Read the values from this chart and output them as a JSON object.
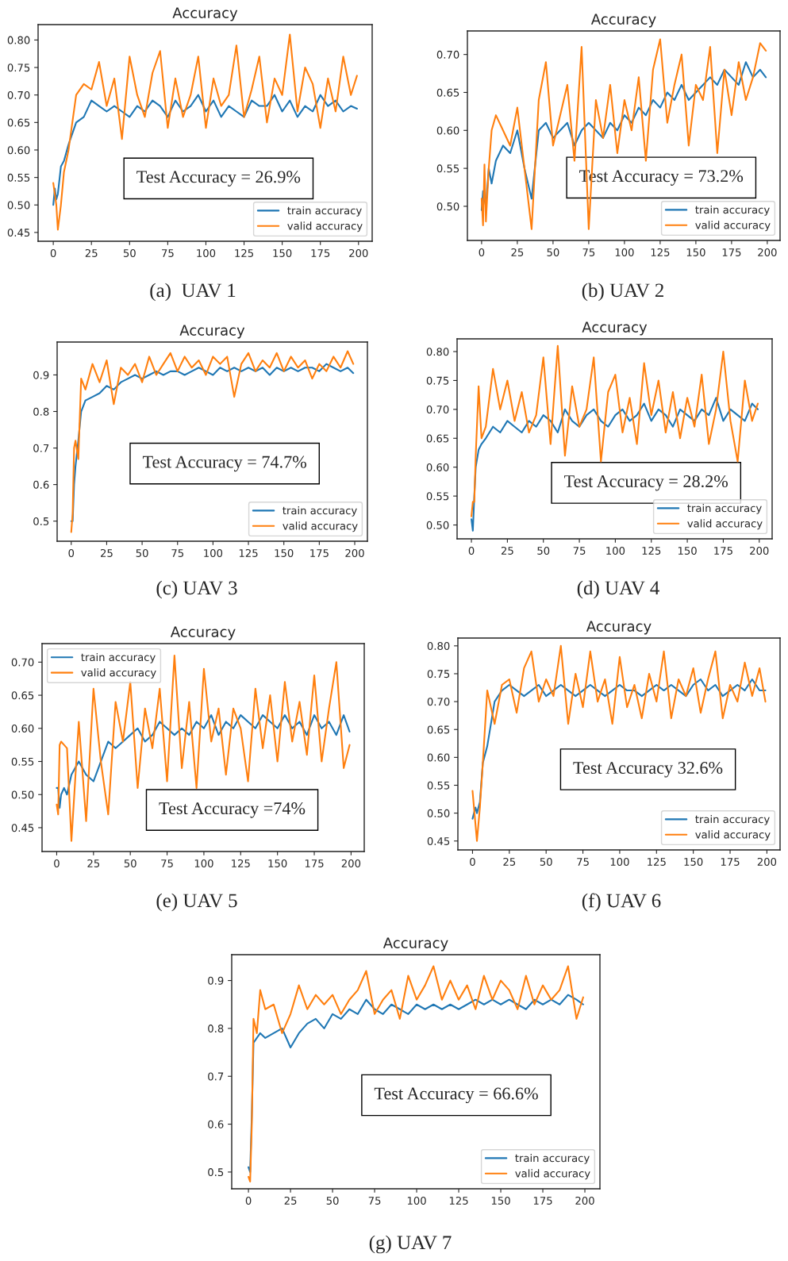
{
  "chart_data": [
    {
      "type": "line",
      "title": "Accuracy",
      "x": [
        0,
        1,
        2,
        3,
        5,
        7,
        10,
        15,
        20,
        25,
        30,
        35,
        40,
        45,
        50,
        55,
        60,
        65,
        70,
        75,
        80,
        85,
        90,
        95,
        100,
        105,
        110,
        115,
        120,
        125,
        130,
        135,
        140,
        145,
        150,
        155,
        160,
        165,
        170,
        175,
        180,
        185,
        190,
        195,
        199
      ],
      "series": [
        {
          "name": "train accuracy",
          "color": "#1f77b4",
          "values": [
            0.5,
            0.53,
            0.51,
            0.52,
            0.57,
            0.58,
            0.61,
            0.65,
            0.66,
            0.69,
            0.68,
            0.67,
            0.68,
            0.67,
            0.66,
            0.68,
            0.67,
            0.69,
            0.68,
            0.66,
            0.69,
            0.67,
            0.68,
            0.7,
            0.67,
            0.69,
            0.66,
            0.68,
            0.67,
            0.66,
            0.69,
            0.68,
            0.68,
            0.7,
            0.67,
            0.69,
            0.66,
            0.68,
            0.67,
            0.7,
            0.68,
            0.69,
            0.67,
            0.68,
            0.675
          ]
        },
        {
          "name": "valid accuracy",
          "color": "#ff7f0e",
          "values": [
            0.54,
            0.52,
            0.5,
            0.455,
            0.5,
            0.56,
            0.6,
            0.7,
            0.72,
            0.71,
            0.76,
            0.68,
            0.73,
            0.62,
            0.77,
            0.7,
            0.66,
            0.74,
            0.78,
            0.64,
            0.73,
            0.66,
            0.7,
            0.77,
            0.64,
            0.73,
            0.68,
            0.7,
            0.79,
            0.66,
            0.71,
            0.77,
            0.65,
            0.73,
            0.7,
            0.81,
            0.67,
            0.75,
            0.72,
            0.64,
            0.73,
            0.67,
            0.77,
            0.7,
            0.735
          ]
        }
      ],
      "xlim": [
        -9.95,
        208.95
      ],
      "xticks": [
        0,
        25,
        50,
        75,
        100,
        125,
        150,
        175,
        200
      ],
      "ylim": [
        0.434,
        0.828
      ],
      "yticks": [
        0.45,
        {
          "value": 0.5,
          "label": "0.50"
        },
        0.55,
        {
          "value": 0.6,
          "label": "0.60"
        },
        0.65,
        {
          "value": 0.7,
          "label": "0.70"
        },
        0.75,
        {
          "value": 0.8,
          "label": "0.80"
        }
      ],
      "legend": "bottom right",
      "annotations": [
        "Test Accuracy = 26.9%",
        "(a)  UAV 1"
      ]
    },
    {
      "type": "line",
      "title": "Accuracy",
      "x": [
        0,
        1,
        2,
        3,
        5,
        7,
        10,
        15,
        20,
        25,
        30,
        35,
        40,
        45,
        50,
        55,
        60,
        65,
        70,
        75,
        80,
        85,
        90,
        95,
        100,
        105,
        110,
        115,
        120,
        125,
        130,
        135,
        140,
        145,
        150,
        155,
        160,
        165,
        170,
        175,
        180,
        185,
        190,
        195,
        199
      ],
      "series": [
        {
          "name": "train accuracy",
          "color": "#1f77b4",
          "values": [
            0.495,
            0.52,
            0.51,
            0.5,
            0.55,
            0.53,
            0.56,
            0.58,
            0.57,
            0.6,
            0.55,
            0.51,
            0.6,
            0.61,
            0.59,
            0.6,
            0.61,
            0.58,
            0.6,
            0.61,
            0.6,
            0.59,
            0.61,
            0.6,
            0.62,
            0.61,
            0.63,
            0.62,
            0.64,
            0.63,
            0.65,
            0.64,
            0.66,
            0.64,
            0.65,
            0.66,
            0.67,
            0.66,
            0.68,
            0.67,
            0.66,
            0.69,
            0.67,
            0.68,
            0.67
          ]
        },
        {
          "name": "valid accuracy",
          "color": "#ff7f0e",
          "values": [
            0.51,
            0.475,
            0.555,
            0.48,
            0.55,
            0.6,
            0.62,
            0.6,
            0.58,
            0.63,
            0.55,
            0.47,
            0.64,
            0.69,
            0.58,
            0.62,
            0.66,
            0.56,
            0.71,
            0.47,
            0.64,
            0.59,
            0.66,
            0.57,
            0.64,
            0.6,
            0.67,
            0.56,
            0.68,
            0.72,
            0.61,
            0.66,
            0.7,
            0.58,
            0.66,
            0.64,
            0.71,
            0.57,
            0.68,
            0.62,
            0.69,
            0.64,
            0.67,
            0.715,
            0.705
          ]
        }
      ],
      "xlim": [
        -9.95,
        208.95
      ],
      "xticks": [
        0,
        25,
        50,
        75,
        100,
        125,
        150,
        175,
        200
      ],
      "ylim": [
        0.455,
        0.731
      ],
      "yticks": [
        {
          "value": 0.5,
          "label": "0.50"
        },
        0.55,
        {
          "value": 0.6,
          "label": "0.60"
        },
        0.65,
        {
          "value": 0.7,
          "label": "0.70"
        }
      ],
      "legend": "bottom right",
      "annotations": [
        "Test Accuracy = 73.2%",
        "(b) UAV 2"
      ]
    },
    {
      "type": "line",
      "title": "Accuracy",
      "x": [
        0,
        1,
        2,
        3,
        5,
        7,
        10,
        15,
        20,
        25,
        30,
        35,
        40,
        45,
        50,
        55,
        60,
        65,
        70,
        75,
        80,
        85,
        90,
        95,
        100,
        105,
        110,
        115,
        120,
        125,
        130,
        135,
        140,
        145,
        150,
        155,
        160,
        165,
        170,
        175,
        180,
        185,
        190,
        195,
        199
      ],
      "series": [
        {
          "name": "train accuracy",
          "color": "#1f77b4",
          "values": [
            0.5,
            0.5,
            0.6,
            0.65,
            0.72,
            0.8,
            0.83,
            0.84,
            0.85,
            0.87,
            0.86,
            0.88,
            0.89,
            0.9,
            0.89,
            0.9,
            0.91,
            0.9,
            0.91,
            0.91,
            0.9,
            0.91,
            0.92,
            0.91,
            0.9,
            0.92,
            0.91,
            0.92,
            0.91,
            0.92,
            0.91,
            0.92,
            0.9,
            0.92,
            0.91,
            0.92,
            0.91,
            0.92,
            0.92,
            0.91,
            0.93,
            0.92,
            0.91,
            0.92,
            0.905
          ]
        },
        {
          "name": "valid accuracy",
          "color": "#ff7f0e",
          "values": [
            0.47,
            0.52,
            0.7,
            0.72,
            0.67,
            0.89,
            0.86,
            0.93,
            0.88,
            0.94,
            0.82,
            0.92,
            0.9,
            0.93,
            0.88,
            0.95,
            0.9,
            0.93,
            0.96,
            0.91,
            0.95,
            0.92,
            0.94,
            0.9,
            0.95,
            0.93,
            0.95,
            0.84,
            0.93,
            0.96,
            0.91,
            0.94,
            0.92,
            0.96,
            0.91,
            0.95,
            0.92,
            0.94,
            0.89,
            0.93,
            0.91,
            0.95,
            0.92,
            0.965,
            0.93
          ]
        }
      ],
      "xlim": [
        -9.95,
        208.95
      ],
      "xticks": [
        0,
        25,
        50,
        75,
        100,
        125,
        150,
        175,
        200
      ],
      "ylim": [
        0.445,
        0.99
      ],
      "yticks": [
        0.5,
        0.6,
        0.7,
        0.8,
        0.9
      ],
      "legend": "bottom right",
      "annotations": [
        "Test Accuracy = 74.7%",
        "(c) UAV 3"
      ]
    },
    {
      "type": "line",
      "title": "Accuracy",
      "x": [
        0,
        1,
        2,
        3,
        5,
        7,
        10,
        15,
        20,
        25,
        30,
        35,
        40,
        45,
        50,
        55,
        60,
        65,
        70,
        75,
        80,
        85,
        90,
        95,
        100,
        105,
        110,
        115,
        120,
        125,
        130,
        135,
        140,
        145,
        150,
        155,
        160,
        165,
        170,
        175,
        180,
        185,
        190,
        195,
        199
      ],
      "series": [
        {
          "name": "train accuracy",
          "color": "#1f77b4",
          "values": [
            0.51,
            0.49,
            0.55,
            0.6,
            0.63,
            0.64,
            0.65,
            0.67,
            0.66,
            0.68,
            0.67,
            0.66,
            0.68,
            0.67,
            0.69,
            0.68,
            0.66,
            0.7,
            0.68,
            0.67,
            0.69,
            0.7,
            0.68,
            0.67,
            0.69,
            0.7,
            0.68,
            0.69,
            0.71,
            0.68,
            0.7,
            0.69,
            0.67,
            0.7,
            0.69,
            0.68,
            0.7,
            0.69,
            0.72,
            0.68,
            0.7,
            0.69,
            0.68,
            0.71,
            0.7
          ]
        },
        {
          "name": "valid accuracy",
          "color": "#ff7f0e",
          "values": [
            0.515,
            0.54,
            0.54,
            0.62,
            0.74,
            0.65,
            0.67,
            0.77,
            0.7,
            0.75,
            0.68,
            0.73,
            0.66,
            0.69,
            0.79,
            0.64,
            0.81,
            0.62,
            0.74,
            0.67,
            0.7,
            0.79,
            0.61,
            0.73,
            0.76,
            0.66,
            0.72,
            0.64,
            0.78,
            0.69,
            0.75,
            0.66,
            0.73,
            0.65,
            0.72,
            0.67,
            0.76,
            0.64,
            0.7,
            0.8,
            0.68,
            0.61,
            0.75,
            0.68,
            0.71
          ]
        }
      ],
      "xlim": [
        -9.95,
        208.95
      ],
      "xticks": [
        0,
        25,
        50,
        75,
        100,
        125,
        150,
        175,
        200
      ],
      "ylim": [
        0.476,
        0.822
      ],
      "yticks": [
        {
          "value": 0.5,
          "label": "0.50"
        },
        0.55,
        {
          "value": 0.6,
          "label": "0.60"
        },
        0.65,
        {
          "value": 0.7,
          "label": "0.70"
        },
        0.75,
        {
          "value": 0.8,
          "label": "0.80"
        }
      ],
      "legend": "bottom right",
      "annotations": [
        "Test Accuracy = 28.2%",
        "(d) UAV 4"
      ]
    },
    {
      "type": "line",
      "title": "Accuracy",
      "x": [
        0,
        1,
        2,
        3,
        5,
        7,
        10,
        15,
        20,
        25,
        30,
        35,
        40,
        45,
        50,
        55,
        60,
        65,
        70,
        75,
        80,
        85,
        90,
        95,
        100,
        105,
        110,
        115,
        120,
        125,
        130,
        135,
        140,
        145,
        150,
        155,
        160,
        165,
        170,
        175,
        180,
        185,
        190,
        195,
        199
      ],
      "series": [
        {
          "name": "train accuracy",
          "color": "#1f77b4",
          "values": [
            0.51,
            0.51,
            0.48,
            0.5,
            0.51,
            0.5,
            0.53,
            0.55,
            0.53,
            0.52,
            0.55,
            0.58,
            0.57,
            0.58,
            0.59,
            0.6,
            0.58,
            0.59,
            0.61,
            0.6,
            0.59,
            0.6,
            0.59,
            0.61,
            0.6,
            0.62,
            0.59,
            0.61,
            0.6,
            0.62,
            0.61,
            0.6,
            0.62,
            0.61,
            0.6,
            0.62,
            0.6,
            0.61,
            0.59,
            0.62,
            0.6,
            0.61,
            0.59,
            0.62,
            0.595
          ]
        },
        {
          "name": "valid accuracy",
          "color": "#ff7f0e",
          "values": [
            0.485,
            0.47,
            0.575,
            0.58,
            0.575,
            0.57,
            0.43,
            0.61,
            0.46,
            0.66,
            0.55,
            0.47,
            0.64,
            0.58,
            0.67,
            0.51,
            0.63,
            0.57,
            0.66,
            0.52,
            0.71,
            0.54,
            0.64,
            0.51,
            0.69,
            0.58,
            0.63,
            0.53,
            0.63,
            0.6,
            0.52,
            0.66,
            0.57,
            0.65,
            0.55,
            0.67,
            0.58,
            0.64,
            0.56,
            0.68,
            0.55,
            0.63,
            0.7,
            0.54,
            0.575
          ]
        }
      ],
      "xlim": [
        -9.95,
        208.95
      ],
      "xticks": [
        0,
        25,
        50,
        75,
        100,
        125,
        150,
        175,
        200
      ],
      "ylim": [
        0.414,
        0.728
      ],
      "yticks": [
        0.45,
        {
          "value": 0.5,
          "label": "0.50"
        },
        0.55,
        {
          "value": 0.6,
          "label": "0.60"
        },
        0.65,
        {
          "value": 0.7,
          "label": "0.70"
        }
      ],
      "legend": "top left",
      "annotations": [
        "Test Accuracy =74%",
        "(e) UAV 5"
      ]
    },
    {
      "type": "line",
      "title": "Accuracy",
      "x": [
        0,
        1,
        2,
        3,
        5,
        7,
        10,
        15,
        20,
        25,
        30,
        35,
        40,
        45,
        50,
        55,
        60,
        65,
        70,
        75,
        80,
        85,
        90,
        95,
        100,
        105,
        110,
        115,
        120,
        125,
        130,
        135,
        140,
        145,
        150,
        155,
        160,
        165,
        170,
        175,
        180,
        185,
        190,
        195,
        199
      ],
      "series": [
        {
          "name": "train accuracy",
          "color": "#1f77b4",
          "values": [
            0.49,
            0.5,
            0.51,
            0.5,
            0.52,
            0.59,
            0.62,
            0.7,
            0.72,
            0.73,
            0.72,
            0.71,
            0.72,
            0.73,
            0.71,
            0.72,
            0.73,
            0.72,
            0.71,
            0.72,
            0.73,
            0.72,
            0.71,
            0.72,
            0.73,
            0.72,
            0.72,
            0.71,
            0.72,
            0.73,
            0.72,
            0.73,
            0.72,
            0.71,
            0.73,
            0.74,
            0.72,
            0.73,
            0.71,
            0.72,
            0.73,
            0.72,
            0.74,
            0.72,
            0.72
          ]
        },
        {
          "name": "valid accuracy",
          "color": "#ff7f0e",
          "values": [
            0.54,
            0.51,
            0.48,
            0.45,
            0.51,
            0.59,
            0.72,
            0.66,
            0.73,
            0.74,
            0.68,
            0.76,
            0.79,
            0.7,
            0.74,
            0.71,
            0.8,
            0.66,
            0.75,
            0.69,
            0.79,
            0.7,
            0.74,
            0.66,
            0.78,
            0.69,
            0.73,
            0.67,
            0.75,
            0.7,
            0.79,
            0.67,
            0.74,
            0.71,
            0.76,
            0.68,
            0.74,
            0.79,
            0.67,
            0.73,
            0.7,
            0.77,
            0.71,
            0.76,
            0.7
          ]
        }
      ],
      "xlim": [
        -9.95,
        208.95
      ],
      "xticks": [
        0,
        25,
        50,
        75,
        100,
        125,
        150,
        175,
        200
      ],
      "ylim": [
        0.434,
        0.814
      ],
      "yticks": [
        0.45,
        {
          "value": 0.5,
          "label": "0.50"
        },
        0.55,
        {
          "value": 0.6,
          "label": "0.60"
        },
        0.65,
        {
          "value": 0.7,
          "label": "0.70"
        },
        0.75,
        {
          "value": 0.8,
          "label": "0.80"
        }
      ],
      "legend": "bottom right",
      "annotations": [
        "Test Accuracy 32.6%",
        "(f) UAV 6"
      ]
    },
    {
      "type": "line",
      "title": "Accuracy",
      "x": [
        0,
        1,
        2,
        3,
        5,
        7,
        10,
        15,
        20,
        25,
        30,
        35,
        40,
        45,
        50,
        55,
        60,
        65,
        70,
        75,
        80,
        85,
        90,
        95,
        100,
        105,
        110,
        115,
        120,
        125,
        130,
        135,
        140,
        145,
        150,
        155,
        160,
        165,
        170,
        175,
        180,
        185,
        190,
        195,
        199
      ],
      "series": [
        {
          "name": "train accuracy",
          "color": "#1f77b4",
          "values": [
            0.51,
            0.5,
            0.62,
            0.77,
            0.78,
            0.79,
            0.78,
            0.79,
            0.8,
            0.76,
            0.79,
            0.81,
            0.82,
            0.8,
            0.83,
            0.82,
            0.84,
            0.83,
            0.86,
            0.84,
            0.83,
            0.85,
            0.84,
            0.83,
            0.85,
            0.84,
            0.85,
            0.84,
            0.85,
            0.84,
            0.85,
            0.86,
            0.85,
            0.86,
            0.85,
            0.86,
            0.85,
            0.84,
            0.86,
            0.85,
            0.86,
            0.85,
            0.87,
            0.86,
            0.85
          ]
        },
        {
          "name": "valid accuracy",
          "color": "#ff7f0e",
          "values": [
            0.49,
            0.48,
            0.6,
            0.82,
            0.79,
            0.88,
            0.84,
            0.85,
            0.79,
            0.83,
            0.89,
            0.84,
            0.87,
            0.85,
            0.87,
            0.83,
            0.86,
            0.88,
            0.92,
            0.83,
            0.86,
            0.88,
            0.82,
            0.91,
            0.86,
            0.89,
            0.93,
            0.86,
            0.9,
            0.86,
            0.89,
            0.84,
            0.91,
            0.86,
            0.9,
            0.88,
            0.84,
            0.91,
            0.85,
            0.89,
            0.86,
            0.88,
            0.93,
            0.82,
            0.865
          ]
        }
      ],
      "xlim": [
        -9.95,
        208.95
      ],
      "xticks": [
        0,
        25,
        50,
        75,
        100,
        125,
        150,
        175,
        200
      ],
      "ylim": [
        0.465,
        0.954
      ],
      "yticks": [
        0.5,
        0.6,
        0.7,
        0.8,
        0.9
      ],
      "legend": "bottom right",
      "annotations": [
        "Test Accuracy = 66.6%",
        "(g) UAV 7"
      ]
    }
  ]
}
